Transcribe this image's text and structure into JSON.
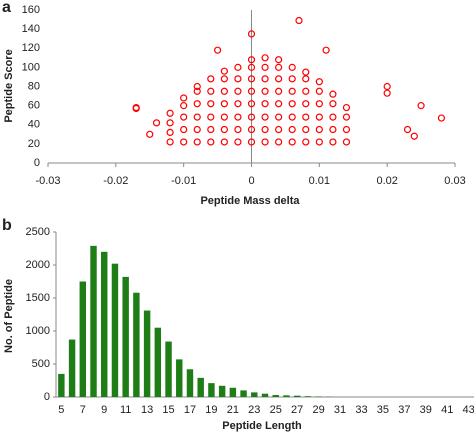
{
  "chart_data": [
    {
      "type": "scatter",
      "panel_label": "a",
      "xlabel": "Peptide Mass delta",
      "ylabel": "Peptide Score",
      "color": "#ff0000",
      "x": [
        -0.012,
        -0.012,
        -0.012,
        -0.012,
        -0.01,
        -0.01,
        -0.01,
        -0.01,
        -0.01,
        -0.008,
        -0.008,
        -0.008,
        -0.008,
        -0.008,
        -0.008,
        -0.006,
        -0.006,
        -0.006,
        -0.006,
        -0.006,
        -0.006,
        -0.004,
        -0.004,
        -0.004,
        -0.004,
        -0.004,
        -0.004,
        -0.004,
        -0.002,
        -0.002,
        -0.002,
        -0.002,
        -0.002,
        -0.002,
        -0.002,
        0,
        0,
        0,
        0,
        0,
        0,
        0,
        0,
        0.002,
        0.002,
        0.002,
        0.002,
        0.002,
        0.002,
        0.002,
        0.002,
        0.004,
        0.004,
        0.004,
        0.004,
        0.004,
        0.004,
        0.004,
        0.004,
        0.006,
        0.006,
        0.006,
        0.006,
        0.006,
        0.006,
        0.006,
        0.008,
        0.008,
        0.008,
        0.008,
        0.008,
        0.008,
        0.008,
        0.01,
        0.01,
        0.01,
        0.01,
        0.01,
        0.01,
        0.012,
        0.012,
        0.012,
        0.012,
        0.012,
        0.014,
        0.014,
        0.014,
        0.014,
        -0.017,
        -0.017,
        0.028,
        0.025,
        0.02,
        0.007,
        0,
        -0.005,
        0.011,
        0.02,
        -0.014,
        -0.015,
        0.023,
        0.024
      ],
      "values": [
        22,
        32,
        42,
        52,
        22,
        35,
        48,
        60,
        68,
        22,
        35,
        48,
        62,
        75,
        80,
        22,
        35,
        48,
        62,
        75,
        88,
        22,
        35,
        48,
        62,
        75,
        88,
        96,
        22,
        35,
        48,
        62,
        75,
        88,
        100,
        22,
        35,
        48,
        62,
        75,
        88,
        100,
        108,
        22,
        35,
        48,
        62,
        75,
        88,
        100,
        110,
        22,
        35,
        48,
        62,
        75,
        88,
        100,
        108,
        22,
        35,
        48,
        62,
        75,
        88,
        100,
        22,
        35,
        48,
        62,
        75,
        88,
        95,
        22,
        35,
        48,
        62,
        75,
        85,
        22,
        35,
        48,
        62,
        72,
        22,
        35,
        48,
        58,
        58,
        57,
        47,
        60,
        80,
        149,
        135,
        118,
        118,
        73,
        42,
        30,
        35,
        28
      ],
      "xlim": [
        -0.03,
        0.03
      ],
      "xticks": [
        -0.03,
        -0.02,
        -0.01,
        0,
        0.01,
        0.02,
        0.03
      ],
      "ylim": [
        0,
        160
      ],
      "yticks": [
        0,
        20,
        40,
        60,
        80,
        100,
        120,
        140,
        160
      ]
    },
    {
      "type": "bar",
      "panel_label": "b",
      "xlabel": "Peptide Length",
      "ylabel": "No. of Peptide",
      "color": "#1e7d16",
      "categories": [
        "5",
        null,
        "7",
        null,
        "9",
        null,
        "11",
        null,
        "13",
        null,
        "15",
        null,
        "17",
        null,
        "19",
        null,
        "21",
        null,
        "23",
        null,
        "25",
        null,
        "27",
        null,
        "29",
        null,
        "31",
        null,
        "33",
        null,
        "35",
        null,
        "37",
        null,
        "39",
        null,
        "41",
        null,
        "43"
      ],
      "values": [
        350,
        870,
        1750,
        2290,
        2200,
        2020,
        1820,
        1580,
        1310,
        1050,
        840,
        570,
        420,
        290,
        210,
        170,
        140,
        100,
        70,
        50,
        30,
        25,
        20,
        12,
        8,
        5,
        0,
        0,
        0,
        0,
        0,
        0,
        0,
        0,
        0,
        0,
        0,
        0,
        0
      ],
      "ylim": [
        0,
        2500
      ],
      "yticks": [
        0,
        500,
        1000,
        1500,
        2000,
        2500
      ]
    }
  ]
}
